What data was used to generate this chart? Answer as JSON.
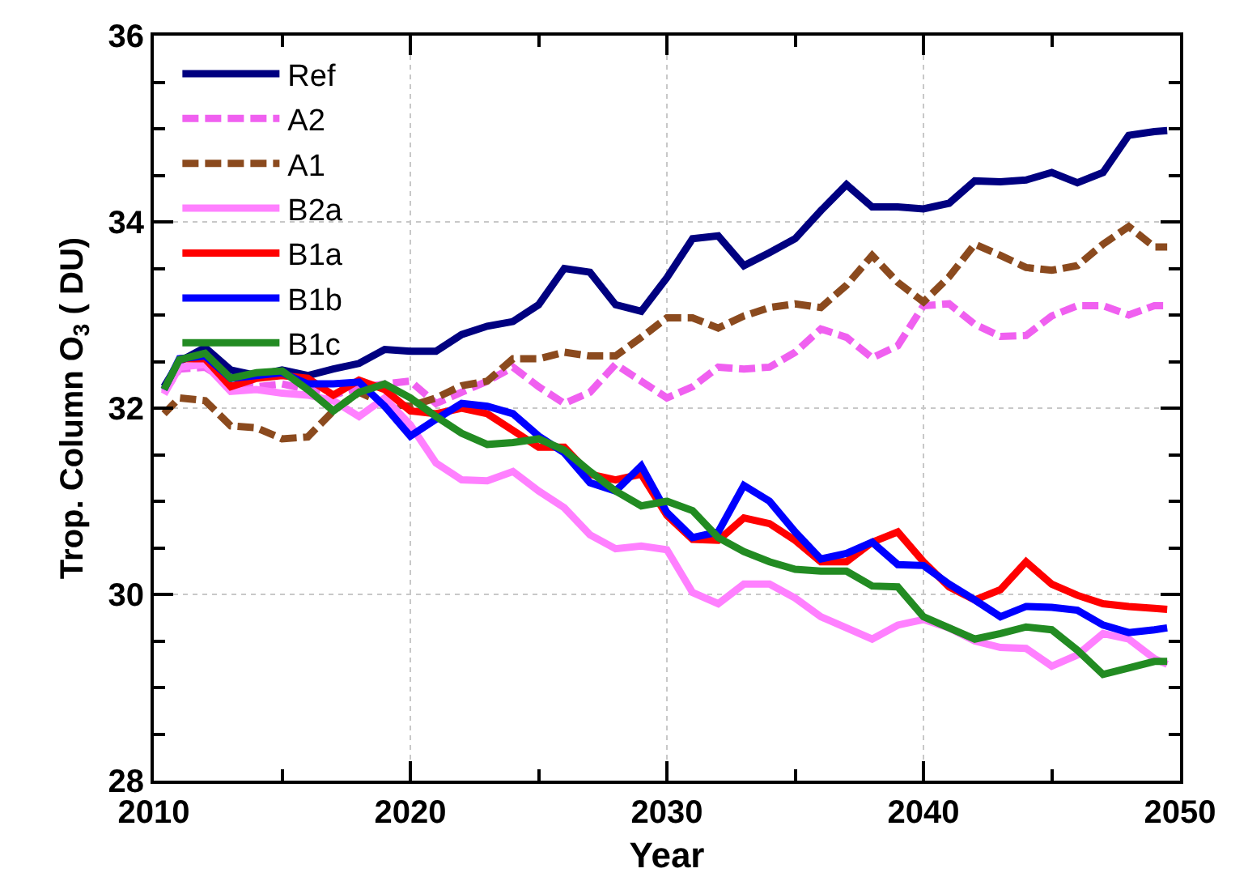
{
  "chart_data": {
    "type": "line",
    "xlabel": "Year",
    "ylabel": "Trop. Column O$_{3}$ ( DU)",
    "x": [
      2010.4,
      2011,
      2012,
      2013,
      2014,
      2015,
      2016,
      2017,
      2018,
      2019,
      2020,
      2021,
      2022,
      2023,
      2024,
      2025,
      2026,
      2027,
      2028,
      2029,
      2030,
      2031,
      2032,
      2033,
      2034,
      2035,
      2036,
      2037,
      2038,
      2039,
      2040,
      2041,
      2042,
      2043,
      2044,
      2045,
      2046,
      2047,
      2048,
      2049,
      2049.5
    ],
    "xlim": [
      2010,
      2050
    ],
    "xticks": [
      2010,
      {
        "value": 2015,
        "label": null
      },
      2020,
      {
        "value": 2025,
        "label": null
      },
      2030,
      {
        "value": 2035,
        "label": null
      },
      2040,
      {
        "value": 2045,
        "label": null
      },
      2050
    ],
    "ylim": [
      28,
      36
    ],
    "yticks": [
      28,
      {
        "value": 28.5,
        "label": null
      },
      {
        "value": 29,
        "label": null
      },
      {
        "value": 29.5,
        "label": null
      },
      30,
      {
        "value": 30.5,
        "label": null
      },
      {
        "value": 31,
        "label": null
      },
      {
        "value": 31.5,
        "label": null
      },
      32,
      {
        "value": 32.5,
        "label": null
      },
      {
        "value": 33,
        "label": null
      },
      {
        "value": 33.5,
        "label": null
      },
      34,
      {
        "value": 34.5,
        "label": null
      },
      {
        "value": 35,
        "label": null
      },
      {
        "value": 35.5,
        "label": null
      },
      36
    ],
    "grid": true,
    "legend": "top left",
    "marker": "none",
    "series": [
      {
        "name": "Ref",
        "color": "#000080",
        "line_style": "solid",
        "values": [
          32.23,
          32.5,
          32.65,
          32.41,
          32.35,
          32.41,
          32.35,
          32.42,
          32.48,
          32.63,
          32.61,
          32.61,
          32.79,
          32.88,
          32.93,
          33.11,
          33.5,
          33.46,
          33.11,
          33.04,
          33.4,
          33.82,
          33.85,
          33.53,
          33.67,
          33.82,
          34.12,
          34.4,
          34.16,
          34.16,
          34.14,
          34.2,
          34.44,
          34.43,
          34.45,
          34.53,
          34.42,
          34.53,
          34.93,
          34.97,
          34.98
        ]
      },
      {
        "name": "A2",
        "color": "#f060f0",
        "line_style": "dashed",
        "values": [
          32.17,
          32.42,
          32.44,
          32.26,
          32.23,
          32.26,
          32.2,
          32.14,
          32.22,
          32.26,
          32.29,
          32.05,
          32.17,
          32.29,
          32.44,
          32.23,
          32.05,
          32.17,
          32.47,
          32.29,
          32.11,
          32.23,
          32.44,
          32.42,
          32.44,
          32.6,
          32.85,
          32.76,
          32.54,
          32.67,
          33.1,
          33.12,
          32.9,
          32.77,
          32.78,
          32.99,
          33.1,
          33.1,
          33.0,
          33.1,
          33.1
        ]
      },
      {
        "name": "A1",
        "color": "#8b4a1e",
        "line_style": "dashed",
        "values": [
          31.94,
          32.11,
          32.08,
          31.81,
          31.79,
          31.67,
          31.69,
          31.97,
          32.17,
          32.05,
          32.02,
          32.11,
          32.24,
          32.29,
          32.53,
          32.53,
          32.6,
          32.56,
          32.56,
          32.76,
          32.97,
          32.97,
          32.86,
          32.99,
          33.08,
          33.12,
          33.08,
          33.32,
          33.64,
          33.35,
          33.14,
          33.41,
          33.76,
          33.64,
          33.51,
          33.48,
          33.53,
          33.76,
          33.95,
          33.73,
          33.73
        ]
      },
      {
        "name": "B2a",
        "color": "#ff80ff",
        "line_style": "solid",
        "values": [
          32.15,
          32.44,
          32.47,
          32.18,
          32.2,
          32.16,
          32.14,
          32.08,
          31.91,
          32.11,
          31.82,
          31.41,
          31.23,
          31.22,
          31.32,
          31.11,
          30.93,
          30.64,
          30.49,
          30.52,
          30.48,
          30.02,
          29.9,
          30.11,
          30.11,
          29.96,
          29.76,
          29.64,
          29.52,
          29.67,
          29.73,
          29.64,
          29.5,
          29.43,
          29.42,
          29.23,
          29.35,
          29.58,
          29.52,
          29.31,
          29.25
        ]
      },
      {
        "name": "B1a",
        "color": "#ff0000",
        "line_style": "solid",
        "values": [
          null,
          32.53,
          32.53,
          32.23,
          32.32,
          32.35,
          32.32,
          32.14,
          32.3,
          32.2,
          31.97,
          31.94,
          32.0,
          31.94,
          31.76,
          31.58,
          31.58,
          31.29,
          31.23,
          31.29,
          30.85,
          30.59,
          30.58,
          30.82,
          30.76,
          30.58,
          30.35,
          30.35,
          30.56,
          30.67,
          30.35,
          30.08,
          29.94,
          30.05,
          30.35,
          30.11,
          29.99,
          29.9,
          29.87,
          29.85,
          29.84
        ]
      },
      {
        "name": "B1b",
        "color": "#0000ff",
        "line_style": "solid",
        "values": [
          32.2,
          32.53,
          32.56,
          32.32,
          32.35,
          32.38,
          32.26,
          32.26,
          32.28,
          32.02,
          31.7,
          31.88,
          32.05,
          32.02,
          31.94,
          31.7,
          31.52,
          31.2,
          31.11,
          31.38,
          30.88,
          30.61,
          30.67,
          31.17,
          31.0,
          30.67,
          30.38,
          30.44,
          30.56,
          30.32,
          30.31,
          30.11,
          29.94,
          29.76,
          29.87,
          29.86,
          29.83,
          29.67,
          29.59,
          29.62,
          29.64
        ]
      },
      {
        "name": "B1c",
        "color": "#228b22",
        "line_style": "solid",
        "values": [
          32.2,
          32.52,
          32.59,
          32.32,
          32.38,
          32.4,
          32.2,
          31.97,
          32.17,
          32.26,
          32.11,
          31.91,
          31.73,
          31.61,
          31.63,
          31.67,
          31.55,
          31.32,
          31.11,
          30.95,
          31.0,
          30.9,
          30.61,
          30.46,
          30.35,
          30.27,
          30.25,
          30.25,
          30.09,
          30.08,
          29.76,
          29.64,
          29.52,
          29.58,
          29.65,
          29.62,
          29.4,
          29.14,
          29.21,
          29.28,
          29.28
        ]
      }
    ]
  }
}
